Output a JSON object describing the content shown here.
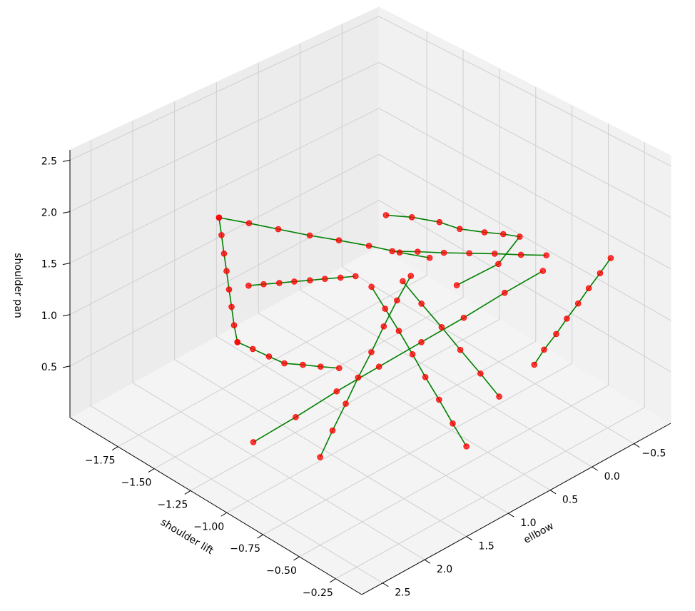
{
  "chart_data": {
    "type": "scatter3d",
    "xlabel": "shoulder lift",
    "ylabel": "ellbow",
    "zlabel": "shoulder pan",
    "xlim": [
      -2.08,
      -0.07
    ],
    "ylim": [
      -0.94,
      2.75
    ],
    "zlim": [
      0,
      2.6
    ],
    "xticks": [
      {
        "value": -1.75,
        "label": "−1.75"
      },
      {
        "value": -1.5,
        "label": "−1.50"
      },
      {
        "value": -1.25,
        "label": "−1.25"
      },
      {
        "value": -1.0,
        "label": "−1.00"
      },
      {
        "value": -0.75,
        "label": "−0.75"
      },
      {
        "value": -0.5,
        "label": "−0.50"
      },
      {
        "value": -0.25,
        "label": "−0.25"
      }
    ],
    "yticks": [
      {
        "value": -0.5,
        "label": "−0.5"
      },
      {
        "value": 0,
        "label": "0.0"
      },
      0.5,
      {
        "value": 1,
        "label": "1.0"
      },
      1.5,
      {
        "value": 2,
        "label": "2.0"
      },
      2.5
    ],
    "zticks": [
      0.5,
      {
        "value": 1,
        "label": "1.0"
      },
      1.5,
      {
        "value": 2,
        "label": "2.0"
      },
      2.5
    ],
    "grid": true,
    "line_color": "#008000",
    "marker_color": "#ff0000",
    "segments": [
      {
        "x": [
          -1.48,
          -1.48,
          -1.48,
          -1.48,
          -1.48,
          -1.48,
          -1.48,
          -1.48
        ],
        "y": [
          2.01,
          1.98,
          1.95,
          1.92,
          1.89,
          1.86,
          1.83,
          1.79
        ],
        "z": [
          2.1,
          1.92,
          1.73,
          1.55,
          1.36,
          1.18,
          0.99,
          0.81
        ]
      },
      {
        "x": [
          -1.48,
          -1.4,
          -1.32,
          -1.23,
          -1.15,
          -1.07,
          -0.98,
          -0.9
        ],
        "y": [
          2.01,
          1.79,
          1.58,
          1.36,
          1.15,
          0.93,
          0.72,
          0.5
        ],
        "z": [
          2.1,
          2.02,
          1.94,
          1.86,
          1.79,
          1.71,
          1.63,
          1.55
        ]
      },
      {
        "x": [
          -0.97,
          -0.85,
          -0.74,
          -0.67,
          -0.58,
          -0.52,
          -0.47,
          -0.6,
          -0.8
        ],
        "y": [
          0.9,
          0.8,
          0.66,
          0.54,
          0.4,
          0.28,
          0.17,
          0.2,
          0.35
        ],
        "z": [
          2.07,
          2.1,
          2.08,
          2.02,
          2.0,
          1.98,
          1.95,
          1.6,
          1.3
        ]
      },
      {
        "x": [
          -0.27,
          -0.28,
          -0.3,
          -0.31,
          -0.33,
          -0.34,
          -0.36,
          -0.37
        ],
        "y": [
          -0.57,
          -0.46,
          -0.36,
          -0.25,
          -0.15,
          -0.04,
          0.07,
          0.17
        ],
        "z": [
          1.6,
          1.49,
          1.37,
          1.26,
          1.14,
          1.03,
          0.91,
          0.8
        ]
      },
      {
        "x": [
          -1.18,
          -1.09,
          -1.01,
          -0.92,
          -0.83,
          -0.74,
          -0.66,
          -0.57
        ],
        "y": [
          2.12,
          1.77,
          1.42,
          1.07,
          0.72,
          0.37,
          0.02,
          -0.28
        ],
        "z": [
          0.24,
          0.4,
          0.56,
          0.72,
          0.88,
          1.04,
          1.2,
          1.36
        ]
      },
      {
        "x": [
          -0.87,
          -0.9,
          -0.93,
          -0.96,
          -0.99,
          -1.02,
          -1.05,
          -1.07
        ],
        "y": [
          1.86,
          1.66,
          1.45,
          1.25,
          1.04,
          0.84,
          0.63,
          0.43
        ],
        "z": [
          0.24,
          0.38,
          0.52,
          0.66,
          0.79,
          0.93,
          1.07,
          1.21
        ]
      },
      {
        "x": [
          -0.37,
          -0.47,
          -0.57,
          -0.67,
          -0.77,
          -0.87,
          -0.97,
          -1.07
        ],
        "y": [
          0.98,
          0.97,
          0.96,
          0.95,
          0.93,
          0.92,
          0.91,
          0.9
        ],
        "z": [
          0.37,
          0.5,
          0.64,
          0.77,
          0.9,
          1.04,
          1.17,
          1.3
        ]
      },
      {
        "x": [
          -1.48,
          -1.38,
          -1.28,
          -1.18,
          -1.11,
          -1.04,
          -0.97
        ],
        "y": [
          1.79,
          1.78,
          1.76,
          1.75,
          1.65,
          1.56,
          1.46
        ],
        "z": [
          0.81,
          0.82,
          0.82,
          0.83,
          0.83,
          0.83,
          0.83
        ]
      },
      {
        "x": [
          -1.38,
          -1.34,
          -1.29,
          -1.25,
          -1.2,
          -1.16,
          -1.11,
          -1.07
        ],
        "y": [
          1.83,
          1.72,
          1.62,
          1.51,
          1.41,
          1.3,
          1.2,
          1.09
        ],
        "z": [
          1.45,
          1.45,
          1.46,
          1.46,
          1.47,
          1.47,
          1.48,
          1.48
        ]
      },
      {
        "x": [
          -0.97,
          -0.87,
          -0.76,
          -0.66,
          -0.55,
          -0.45
        ],
        "y": [
          0.7,
          0.65,
          0.6,
          0.55,
          0.5,
          0.45
        ],
        "z": [
          1.35,
          1.19,
          1.03,
          0.87,
          0.71,
          0.55
        ]
      },
      {
        "x": [
          -1.1,
          -1.0,
          -0.9,
          -0.8,
          -0.7,
          -0.6,
          -0.5
        ],
        "y": [
          0.6,
          0.47,
          0.33,
          0.2,
          0.07,
          -0.07,
          -0.2
        ],
        "z": [
          1.5,
          1.52,
          1.53,
          1.55,
          1.57,
          1.58,
          1.6
        ]
      }
    ]
  }
}
